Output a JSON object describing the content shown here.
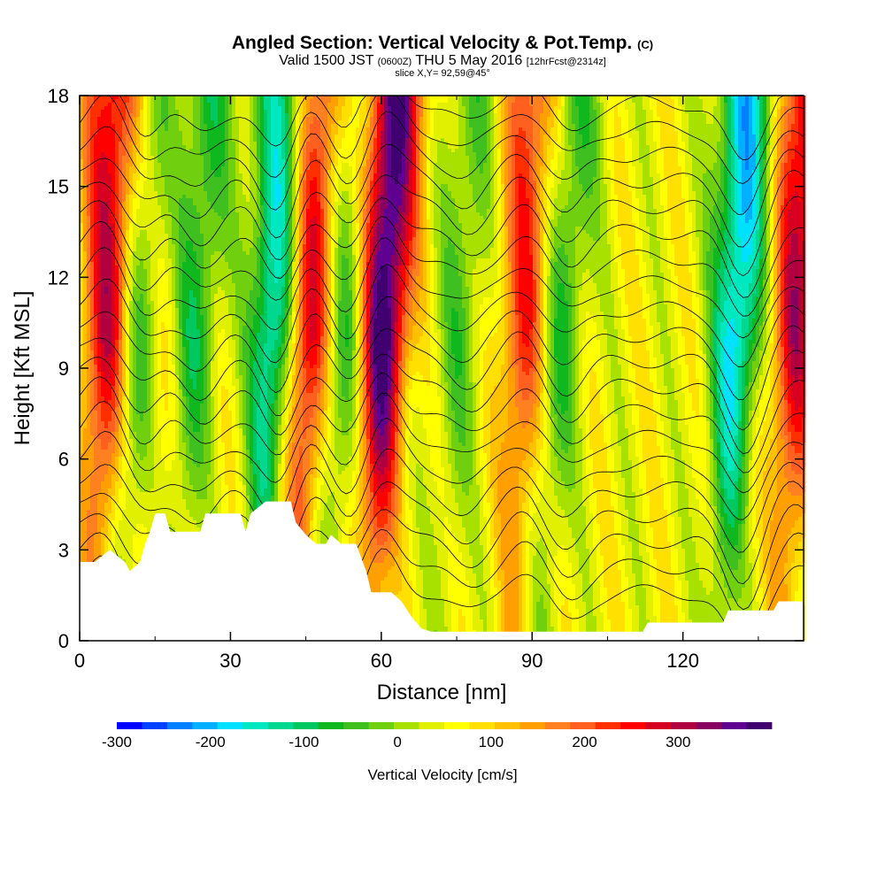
{
  "header": {
    "title_main": "Angled Section: Vertical Velocity & Pot.Temp.",
    "title_units": "(C)",
    "subtitle_a": "Valid 1500 JST",
    "subtitle_b": "(0600Z)",
    "subtitle_c": "THU 5 May 2016",
    "subtitle_d": "[12hrFcst@2314z]",
    "slice": "slice X,Y= 92,59@45°"
  },
  "chart_data": {
    "type": "heatmap",
    "title": "Angled Section: Vertical Velocity & Pot.Temp. (C)",
    "xlabel": "Distance [nm]",
    "ylabel": "Height [Kft MSL]",
    "xlim": [
      0,
      144
    ],
    "ylim": [
      0,
      18
    ],
    "x_ticks": [
      0,
      30,
      60,
      90,
      120
    ],
    "y_ticks": [
      0,
      3,
      6,
      9,
      12,
      15,
      18
    ],
    "x_tick_labels": [
      "0",
      "30",
      "60",
      "90",
      "120"
    ],
    "y_tick_labels": [
      "0",
      "3",
      "6",
      "9",
      "12",
      "15",
      "18"
    ],
    "colorbar": {
      "title": "Vertical Velocity [cm/s]",
      "min": -300,
      "max": 375,
      "step": 25,
      "tick_values": [
        -300,
        -200,
        -100,
        0,
        100,
        200,
        300
      ],
      "tick_labels": [
        "-300",
        "-200",
        "-100",
        "0",
        "100",
        "200",
        "300"
      ],
      "colors": [
        "#0000ff",
        "#0040ff",
        "#0080ff",
        "#00b0ff",
        "#00e0ff",
        "#00e8c0",
        "#00d890",
        "#00c860",
        "#10b820",
        "#40c020",
        "#70d010",
        "#a8e000",
        "#e0f000",
        "#ffff00",
        "#ffe000",
        "#ffc000",
        "#ffa000",
        "#ff8020",
        "#ff6020",
        "#ff3000",
        "#ff0000",
        "#d80020",
        "#b00040",
        "#880060",
        "#600090",
        "#400070"
      ]
    },
    "updrafts": [
      {
        "x": 5,
        "amplitude": 230
      },
      {
        "x": 16,
        "amplitude": 50
      },
      {
        "x": 45,
        "amplitude": 230
      },
      {
        "x": 60,
        "amplitude": 330
      },
      {
        "x": 88,
        "amplitude": 170
      },
      {
        "x": 142,
        "amplitude": 220
      }
    ],
    "downdrafts": [
      {
        "x": 11,
        "amplitude": -120
      },
      {
        "x": 22,
        "amplitude": -120
      },
      {
        "x": 38,
        "amplitude": -220
      },
      {
        "x": 52,
        "amplitude": -120
      },
      {
        "x": 75,
        "amplitude": -80
      },
      {
        "x": 95,
        "amplitude": -110
      },
      {
        "x": 130,
        "amplitude": -230
      }
    ],
    "terrain_height_kft": [
      [
        0,
        2.6
      ],
      [
        3,
        2.6
      ],
      [
        6,
        3.0
      ],
      [
        9,
        2.6
      ],
      [
        10,
        2.3
      ],
      [
        12,
        2.6
      ],
      [
        13,
        3.2
      ],
      [
        14,
        3.6
      ],
      [
        15,
        4.2
      ],
      [
        17,
        4.2
      ],
      [
        18,
        3.6
      ],
      [
        24,
        3.6
      ],
      [
        25,
        4.2
      ],
      [
        32,
        4.2
      ],
      [
        33,
        3.6
      ],
      [
        34,
        4.2
      ],
      [
        37,
        4.6
      ],
      [
        42,
        4.6
      ],
      [
        43,
        3.9
      ],
      [
        45,
        3.5
      ],
      [
        47,
        3.2
      ],
      [
        49,
        3.2
      ],
      [
        50,
        3.5
      ],
      [
        52,
        3.2
      ],
      [
        55,
        3.2
      ],
      [
        57,
        2.3
      ],
      [
        58,
        1.6
      ],
      [
        62,
        1.6
      ],
      [
        64,
        1.3
      ],
      [
        66,
        0.8
      ],
      [
        67,
        0.6
      ],
      [
        68,
        0.4
      ],
      [
        70,
        0.3
      ],
      [
        112,
        0.3
      ],
      [
        113,
        0.6
      ],
      [
        128,
        0.6
      ],
      [
        129,
        1.0
      ],
      [
        138,
        1.0
      ],
      [
        139,
        1.3
      ],
      [
        144,
        1.3
      ]
    ]
  }
}
